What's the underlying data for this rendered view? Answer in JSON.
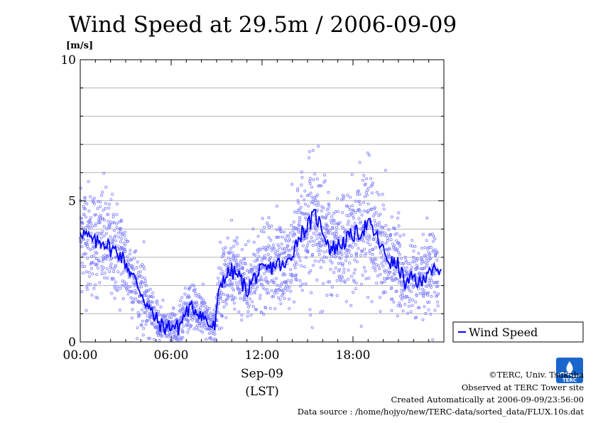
{
  "chart_data": {
    "type": "scatter",
    "title": "Wind Speed at 29.5m / 2006-09-09",
    "ylabel": "[m/s]",
    "ylim": [
      0,
      10
    ],
    "xlim_hours": [
      0,
      24
    ],
    "y_ticks": [
      "0",
      "5",
      "10"
    ],
    "x_ticks": [
      {
        "hour": 0,
        "label": "00:00"
      },
      {
        "hour": 6,
        "label": "06:00"
      },
      {
        "hour": 12,
        "label": "12:00"
      },
      {
        "hour": 18,
        "label": "18:00"
      }
    ],
    "date_label": "Sep-09",
    "time_zone_label": "(LST)",
    "grid": true,
    "legend_position": "right",
    "series": [
      {
        "name": "Wind Speed",
        "color": "#0000ff",
        "scatter_color": "#8080ff",
        "x": [
          0.0,
          0.5,
          1.0,
          1.5,
          2.0,
          2.5,
          3.0,
          3.5,
          4.0,
          4.5,
          5.0,
          5.5,
          6.0,
          6.5,
          7.0,
          7.5,
          8.0,
          8.5,
          8.9,
          9.2,
          9.5,
          10.0,
          10.5,
          11.0,
          11.5,
          12.0,
          12.5,
          13.0,
          13.5,
          14.0,
          14.5,
          15.0,
          15.5,
          16.0,
          16.5,
          17.0,
          17.5,
          18.0,
          18.5,
          19.0,
          19.5,
          20.0,
          20.5,
          21.0,
          21.5,
          22.0,
          22.5,
          23.0,
          23.5
        ],
        "y": [
          4.0,
          3.7,
          3.5,
          3.6,
          3.3,
          3.2,
          2.8,
          2.3,
          1.8,
          1.2,
          0.8,
          0.5,
          0.6,
          0.5,
          1.1,
          1.2,
          1.0,
          0.6,
          0.5,
          2.0,
          2.3,
          2.5,
          2.3,
          1.8,
          2.3,
          2.5,
          2.6,
          2.8,
          2.6,
          3.2,
          3.8,
          4.1,
          4.5,
          4.0,
          3.3,
          3.4,
          3.6,
          3.8,
          3.9,
          4.2,
          3.8,
          3.2,
          2.8,
          2.7,
          2.0,
          2.3,
          2.0,
          2.7,
          2.4
        ]
      }
    ]
  },
  "credits": {
    "copyright": "©TERC, Univ. Tsukuba",
    "observed": "Observed at TERC Tower site",
    "created": "Created Automatically at 2006-09-09/23:56:00",
    "source": "Data source : /home/hojyo/new/TERC-data/sorted_data/FLUX.10s.dat"
  },
  "logo": {
    "text": "TERC",
    "color": "#1a66cc"
  }
}
